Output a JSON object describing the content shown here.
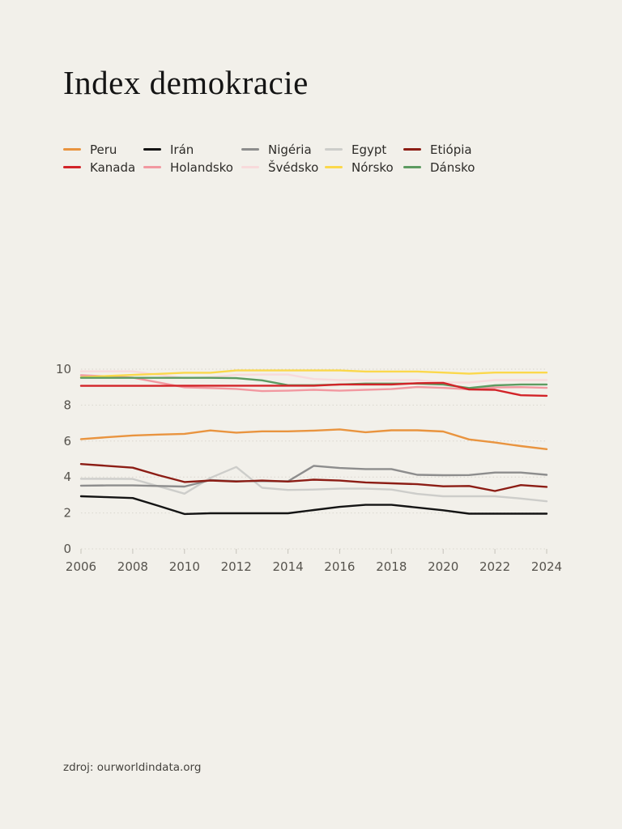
{
  "title": "Index demokracie",
  "source": "zdroj: ourworldindata.org",
  "page": {
    "background": "#f2f0ea",
    "grid_color": "#d9d6ce",
    "tick_color": "#c6c3bb",
    "axis_label_color": "#56534d"
  },
  "chart_data": {
    "type": "line",
    "title": "Index demokracie",
    "xlabel": "",
    "ylabel": "",
    "ylim": [
      0,
      10
    ],
    "yticks": [
      0,
      2,
      4,
      6,
      8,
      10
    ],
    "xticks": [
      2006,
      2008,
      2010,
      2012,
      2014,
      2016,
      2018,
      2020,
      2022,
      2024
    ],
    "grid": "horizontal-dotted",
    "legend_position": "top-left",
    "x": [
      2006,
      2007,
      2008,
      2009,
      2010,
      2011,
      2012,
      2013,
      2014,
      2015,
      2016,
      2017,
      2018,
      2019,
      2020,
      2021,
      2022,
      2023,
      2024
    ],
    "series": [
      {
        "name": "Peru",
        "color": "#e9943f",
        "values": [
          6.11,
          6.21,
          6.31,
          6.36,
          6.4,
          6.59,
          6.47,
          6.54,
          6.54,
          6.58,
          6.65,
          6.49,
          6.6,
          6.6,
          6.53,
          6.09,
          5.92,
          5.72,
          5.55
        ]
      },
      {
        "name": "Irán",
        "color": "#141414",
        "values": [
          2.93,
          2.88,
          2.83,
          2.39,
          1.94,
          1.98,
          1.98,
          1.98,
          1.98,
          2.16,
          2.34,
          2.45,
          2.45,
          2.3,
          2.15,
          1.96,
          1.96,
          1.96,
          1.96
        ]
      },
      {
        "name": "Nigéria",
        "color": "#8d8d8d",
        "values": [
          3.52,
          3.53,
          3.53,
          3.5,
          3.47,
          3.83,
          3.77,
          3.77,
          3.76,
          4.62,
          4.5,
          4.44,
          4.44,
          4.12,
          4.1,
          4.11,
          4.25,
          4.25,
          4.12
        ]
      },
      {
        "name": "Egypt",
        "color": "#cdcdca",
        "values": [
          3.9,
          3.9,
          3.89,
          3.48,
          3.07,
          3.95,
          4.56,
          3.4,
          3.28,
          3.3,
          3.35,
          3.35,
          3.3,
          3.06,
          2.93,
          2.93,
          2.93,
          2.8,
          2.65
        ]
      },
      {
        "name": "Etiópia",
        "color": "#8c1d15",
        "values": [
          4.72,
          4.62,
          4.52,
          4.1,
          3.72,
          3.8,
          3.75,
          3.8,
          3.75,
          3.85,
          3.8,
          3.7,
          3.65,
          3.6,
          3.48,
          3.5,
          3.22,
          3.55,
          3.45
        ]
      },
      {
        "name": "Kanada",
        "color": "#d22328",
        "values": [
          9.07,
          9.07,
          9.07,
          9.07,
          9.08,
          9.08,
          9.08,
          9.08,
          9.08,
          9.08,
          9.15,
          9.15,
          9.15,
          9.22,
          9.24,
          8.87,
          8.85,
          8.55,
          8.52
        ]
      },
      {
        "name": "Holandsko",
        "color": "#f298a0",
        "values": [
          9.66,
          9.6,
          9.53,
          9.26,
          8.99,
          8.95,
          8.9,
          8.78,
          8.8,
          8.85,
          8.8,
          8.85,
          8.89,
          9.01,
          8.96,
          8.88,
          8.98,
          9.0,
          8.96
        ]
      },
      {
        "name": "Švédsko",
        "color": "#f8dadb",
        "values": [
          9.88,
          9.88,
          9.88,
          9.69,
          9.5,
          9.55,
          9.68,
          9.7,
          9.7,
          9.45,
          9.39,
          9.39,
          9.39,
          9.39,
          9.26,
          9.26,
          9.39,
          9.39,
          9.39
        ]
      },
      {
        "name": "Nórsko",
        "color": "#fbd84b",
        "values": [
          9.55,
          9.62,
          9.68,
          9.74,
          9.8,
          9.8,
          9.93,
          9.93,
          9.93,
          9.93,
          9.93,
          9.87,
          9.87,
          9.87,
          9.81,
          9.75,
          9.81,
          9.81,
          9.81
        ]
      },
      {
        "name": "Dánsko",
        "color": "#5d9b61",
        "values": [
          9.52,
          9.52,
          9.52,
          9.52,
          9.52,
          9.52,
          9.5,
          9.38,
          9.11,
          9.11,
          9.15,
          9.2,
          9.2,
          9.2,
          9.15,
          8.95,
          9.1,
          9.15,
          9.15
        ]
      }
    ]
  }
}
